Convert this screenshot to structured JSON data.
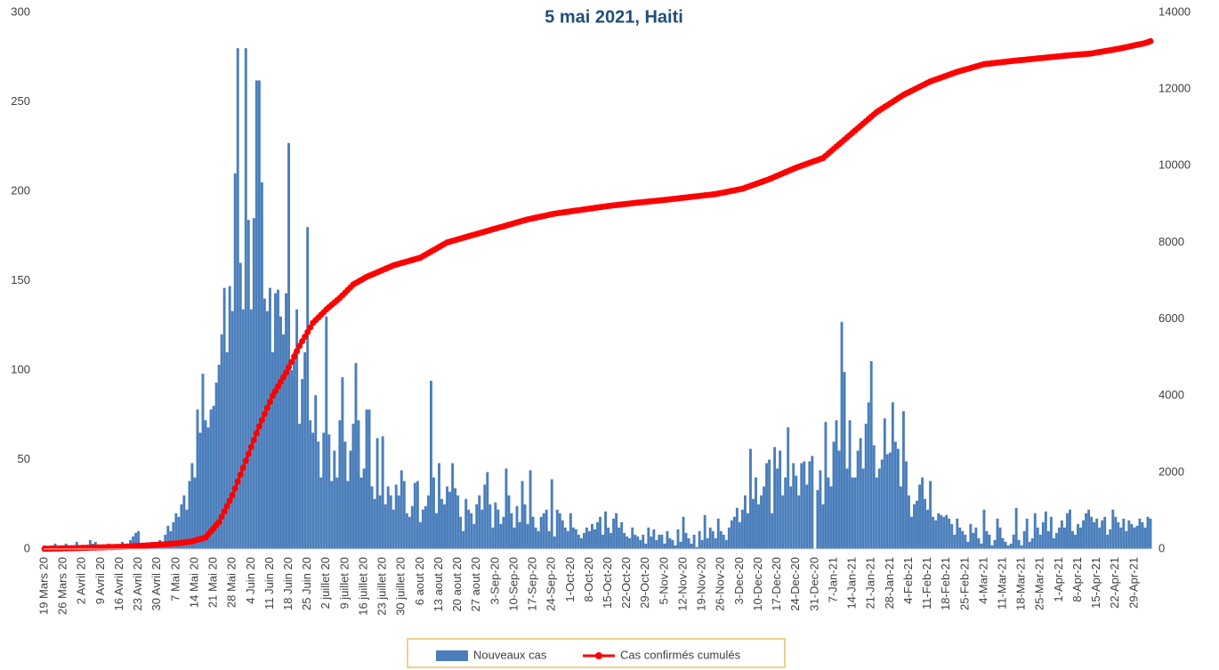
{
  "chart_data": {
    "type": "combo",
    "title": "5 mai 2021, Haiti",
    "categories": [
      "19 Mars 20",
      null,
      null,
      null,
      null,
      null,
      null,
      "26 Mars 20",
      null,
      null,
      null,
      null,
      null,
      null,
      "2 Avril 20",
      null,
      null,
      null,
      null,
      null,
      null,
      "9 Avril 20",
      null,
      null,
      null,
      null,
      null,
      null,
      "16 Avril 20",
      null,
      null,
      null,
      null,
      null,
      null,
      "23 Avril 20",
      null,
      null,
      null,
      null,
      null,
      null,
      "30 Avril 20",
      null,
      null,
      null,
      null,
      null,
      null,
      "7 Mai 20",
      null,
      null,
      null,
      null,
      null,
      null,
      "14 Mai 20",
      null,
      null,
      null,
      null,
      null,
      null,
      "21 Mai 20",
      null,
      null,
      null,
      null,
      null,
      null,
      "28 Mai 20",
      null,
      null,
      null,
      null,
      null,
      null,
      "4 Juin 20",
      null,
      null,
      null,
      null,
      null,
      null,
      "11 Juin 20",
      null,
      null,
      null,
      null,
      null,
      null,
      "18 Juin 20",
      null,
      null,
      null,
      null,
      null,
      null,
      "25 Juin 20",
      null,
      null,
      null,
      null,
      null,
      null,
      "2 juillet 20",
      null,
      null,
      null,
      null,
      null,
      null,
      "9 juillet 20",
      null,
      null,
      null,
      null,
      null,
      null,
      "16 juillet 20",
      null,
      null,
      null,
      null,
      null,
      null,
      "23 juillet 20",
      null,
      null,
      null,
      null,
      null,
      null,
      "30 juillet 20",
      null,
      null,
      null,
      null,
      null,
      null,
      "6 aout 20",
      null,
      null,
      null,
      null,
      null,
      null,
      "13 aout 20",
      null,
      null,
      null,
      null,
      null,
      null,
      "20 aout 20",
      null,
      null,
      null,
      null,
      null,
      null,
      "27 aout 20",
      null,
      null,
      null,
      null,
      null,
      null,
      "3-Sep-20",
      null,
      null,
      null,
      null,
      null,
      null,
      "10-Sep-20",
      null,
      null,
      null,
      null,
      null,
      null,
      "17-Sep-20",
      null,
      null,
      null,
      null,
      null,
      null,
      "24-Sep-20",
      null,
      null,
      null,
      null,
      null,
      null,
      "1-Oct-20",
      null,
      null,
      null,
      null,
      null,
      null,
      "8-Oct-20",
      null,
      null,
      null,
      null,
      null,
      null,
      "15-Oct-20",
      null,
      null,
      null,
      null,
      null,
      null,
      "22-Oct-20",
      null,
      null,
      null,
      null,
      null,
      null,
      "29-Oct-20",
      null,
      null,
      null,
      null,
      null,
      null,
      "5-Nov-20",
      null,
      null,
      null,
      null,
      null,
      null,
      "12-Nov-20",
      null,
      null,
      null,
      null,
      null,
      null,
      "19-Nov-20",
      null,
      null,
      null,
      null,
      null,
      null,
      "26-Nov-20",
      null,
      null,
      null,
      null,
      null,
      null,
      "3-Dec-20",
      null,
      null,
      null,
      null,
      null,
      null,
      "10-Dec-20",
      null,
      null,
      null,
      null,
      null,
      null,
      "17-Dec-20",
      null,
      null,
      null,
      null,
      null,
      null,
      "24-Dec-20",
      null,
      null,
      null,
      null,
      null,
      null,
      "31-Dec-20",
      null,
      null,
      null,
      null,
      null,
      null,
      "7-Jan-21",
      null,
      null,
      null,
      null,
      null,
      null,
      "14-Jan-21",
      null,
      null,
      null,
      null,
      null,
      null,
      "21-Jan-21",
      null,
      null,
      null,
      null,
      null,
      null,
      "28-Jan-21",
      null,
      null,
      null,
      null,
      null,
      null,
      "4-Feb-21",
      null,
      null,
      null,
      null,
      null,
      null,
      "11-Feb-21",
      null,
      null,
      null,
      null,
      null,
      null,
      "18-Feb-21",
      null,
      null,
      null,
      null,
      null,
      null,
      "25-Feb-21",
      null,
      null,
      null,
      null,
      null,
      null,
      "4-Mar-21",
      null,
      null,
      null,
      null,
      null,
      null,
      "11-Mar-21",
      null,
      null,
      null,
      null,
      null,
      null,
      "18-Mar-21",
      null,
      null,
      null,
      null,
      null,
      null,
      "25-Mar-21",
      null,
      null,
      null,
      null,
      null,
      null,
      "1-Apr-21",
      null,
      null,
      null,
      null,
      null,
      null,
      "8-Apr-21",
      null,
      null,
      null,
      null,
      null,
      null,
      "15-Apr-21",
      null,
      null,
      null,
      null,
      null,
      null,
      "22-Apr-21",
      null,
      null,
      null,
      null,
      null,
      null,
      "29-Apr-21",
      null,
      null,
      null,
      null,
      null,
      null
    ],
    "series": [
      {
        "name": "Nouveaux cas",
        "type": "bar",
        "color": "#4a7ebb",
        "values": [
          2,
          1,
          0,
          2,
          3,
          1,
          0,
          0,
          3,
          0,
          2,
          1,
          4,
          0,
          1,
          0,
          2,
          5,
          3,
          4,
          1,
          0,
          2,
          1,
          3,
          0,
          1,
          2,
          2,
          4,
          1,
          3,
          5,
          7,
          9,
          10,
          3,
          2,
          1,
          3,
          4,
          2,
          3,
          5,
          3,
          8,
          13,
          10,
          15,
          20,
          18,
          25,
          30,
          22,
          38,
          48,
          40,
          78,
          65,
          98,
          72,
          68,
          78,
          80,
          93,
          103,
          120,
          146,
          110,
          147,
          133,
          210,
          280,
          160,
          134,
          280,
          184,
          134,
          185,
          262,
          262,
          205,
          140,
          133,
          146,
          110,
          143,
          145,
          130,
          120,
          143,
          227,
          100,
          110,
          134,
          70,
          95,
          110,
          180,
          72,
          65,
          86,
          60,
          40,
          65,
          130,
          64,
          38,
          55,
          40,
          72,
          96,
          60,
          38,
          55,
          70,
          104,
          72,
          40,
          45,
          78,
          78,
          35,
          28,
          62,
          30,
          63,
          25,
          35,
          30,
          22,
          36,
          30,
          44,
          38,
          20,
          18,
          24,
          37,
          38,
          15,
          22,
          24,
          30,
          94,
          40,
          20,
          48,
          28,
          25,
          35,
          32,
          48,
          34,
          30,
          18,
          10,
          28,
          22,
          20,
          14,
          25,
          30,
          22,
          36,
          43,
          25,
          12,
          26,
          22,
          14,
          18,
          45,
          30,
          20,
          12,
          24,
          15,
          38,
          25,
          14,
          44,
          18,
          12,
          10,
          18,
          20,
          22,
          10,
          39,
          7,
          22,
          20,
          16,
          12,
          10,
          20,
          12,
          11,
          8,
          6,
          9,
          12,
          10,
          14,
          11,
          15,
          18,
          8,
          21,
          12,
          9,
          17,
          20,
          12,
          15,
          9,
          7,
          6,
          12,
          8,
          7,
          5,
          8,
          3,
          12,
          7,
          11,
          5,
          8,
          8,
          3,
          10,
          6,
          5,
          2,
          11,
          4,
          18,
          9,
          6,
          3,
          8,
          1,
          10,
          5,
          19,
          6,
          12,
          10,
          6,
          17,
          10,
          8,
          5,
          12,
          16,
          18,
          23,
          15,
          22,
          30,
          20,
          56,
          28,
          40,
          25,
          30,
          35,
          48,
          50,
          20,
          57,
          45,
          55,
          30,
          40,
          68,
          35,
          48,
          41,
          30,
          48,
          49,
          36,
          49,
          52,
          0,
          33,
          44,
          25,
          71,
          40,
          35,
          60,
          72,
          55,
          127,
          99,
          45,
          72,
          40,
          40,
          55,
          62,
          45,
          70,
          82,
          105,
          58,
          40,
          45,
          50,
          73,
          53,
          54,
          82,
          60,
          56,
          35,
          77,
          49,
          30,
          18,
          25,
          27,
          36,
          40,
          28,
          22,
          38,
          18,
          16,
          20,
          19,
          18,
          19,
          17,
          14,
          8,
          17,
          12,
          10,
          8,
          4,
          14,
          9,
          12,
          6,
          3,
          22,
          10,
          8,
          2,
          5,
          17,
          12,
          6,
          4,
          2,
          3,
          8,
          23,
          5,
          2,
          10,
          17,
          4,
          6,
          20,
          12,
          8,
          15,
          21,
          10,
          18,
          6,
          9,
          12,
          16,
          12,
          20,
          22,
          10,
          8,
          14,
          12,
          16,
          20,
          22,
          18,
          15,
          17,
          12,
          16,
          18,
          8,
          11,
          22,
          18,
          15,
          12,
          17,
          10,
          16,
          14,
          12,
          13,
          17,
          15,
          12,
          18,
          17
        ]
      },
      {
        "name": "Cas confirmés cumulés",
        "type": "line",
        "axis": "y2",
        "color": "#ff0000",
        "values": [
          6,
          7,
          9,
          10,
          12,
          13,
          15,
          16,
          18,
          19,
          20,
          22,
          24,
          26,
          28,
          30,
          32,
          34,
          36,
          38,
          40,
          42,
          44,
          46,
          48,
          50,
          52,
          54,
          56,
          58,
          60,
          64,
          68,
          72,
          76,
          80,
          84,
          88,
          92,
          96,
          100,
          105,
          110,
          115,
          120,
          125,
          130,
          135,
          140,
          145,
          150,
          160,
          170,
          180,
          190,
          200,
          220,
          240,
          260,
          280,
          300,
          380,
          460,
          540,
          620,
          700,
          840,
          980,
          1120,
          1260,
          1400,
          1580,
          1760,
          1940,
          2120,
          2300,
          2480,
          2660,
          2840,
          3020,
          3200,
          3360,
          3520,
          3680,
          3840,
          4000,
          4120,
          4240,
          4360,
          4480,
          4600,
          4740,
          4880,
          5020,
          5160,
          5300,
          5420,
          5540,
          5660,
          5780,
          5900,
          5970,
          6040,
          6110,
          6180,
          6250,
          6310,
          6370,
          6430,
          6490,
          6550,
          6620,
          6690,
          6760,
          6830,
          6900,
          6940,
          6980,
          7020,
          7060,
          7100,
          7130,
          7160,
          7190,
          7220,
          7250,
          7280,
          7310,
          7340,
          7370,
          7400,
          7420,
          7440,
          7460,
          7480,
          7500,
          7520,
          7540,
          7560,
          7580,
          7600,
          7640,
          7680,
          7720,
          7760,
          7800,
          7840,
          7880,
          7920,
          7960,
          8000,
          8020,
          8040,
          8060,
          8080,
          8100,
          8120,
          8140,
          8160,
          8180,
          8200,
          8220,
          8240,
          8260,
          8280,
          8300,
          8320,
          8340,
          8360,
          8380,
          8400,
          8420,
          8440,
          8460,
          8480,
          8500,
          8520,
          8540,
          8560,
          8580,
          8600,
          8615,
          8630,
          8645,
          8660,
          8675,
          8690,
          8705,
          8720,
          8735,
          8750,
          8760,
          8770,
          8780,
          8790,
          8800,
          8810,
          8820,
          8830,
          8840,
          8850,
          8860,
          8870,
          8880,
          8890,
          8900,
          8910,
          8920,
          8930,
          8940,
          8950,
          8958,
          8966,
          8974,
          8982,
          8990,
          8998,
          9006,
          9014,
          9022,
          9030,
          9037,
          9044,
          9051,
          9058,
          9065,
          9072,
          9079,
          9086,
          9093,
          9100,
          9108,
          9116,
          9124,
          9132,
          9140,
          9148,
          9156,
          9164,
          9172,
          9180,
          9188,
          9196,
          9204,
          9212,
          9220,
          9228,
          9236,
          9244,
          9252,
          9260,
          9274,
          9288,
          9302,
          9316,
          9330,
          9344,
          9358,
          9372,
          9386,
          9400,
          9425,
          9450,
          9475,
          9500,
          9525,
          9550,
          9575,
          9600,
          9625,
          9650,
          9680,
          9710,
          9740,
          9770,
          9800,
          9830,
          9860,
          9890,
          9920,
          9950,
          9975,
          10000,
          10025,
          10050,
          10075,
          10100,
          10125,
          10150,
          10175,
          10200,
          10260,
          10320,
          10380,
          10440,
          10500,
          10560,
          10620,
          10680,
          10740,
          10800,
          10860,
          10920,
          10980,
          11040,
          11100,
          11160,
          11220,
          11280,
          11340,
          11400,
          11445,
          11490,
          11535,
          11580,
          11625,
          11670,
          11715,
          11760,
          11805,
          11850,
          11885,
          11920,
          11955,
          11990,
          12025,
          12060,
          12095,
          12130,
          12165,
          12200,
          12225,
          12250,
          12275,
          12300,
          12325,
          12350,
          12375,
          12400,
          12425,
          12450,
          12470,
          12490,
          12510,
          12530,
          12550,
          12570,
          12590,
          12610,
          12630,
          12650,
          12658,
          12666,
          12674,
          12682,
          12690,
          12698,
          12706,
          12714,
          12722,
          12730,
          12737,
          12744,
          12751,
          12758,
          12765,
          12772,
          12779,
          12786,
          12793,
          12800,
          12807,
          12814,
          12821,
          12828,
          12835,
          12842,
          12849,
          12856,
          12863,
          12870,
          12876,
          12882,
          12888,
          12894,
          12900,
          12906,
          12912,
          12918,
          12924,
          12930,
          12942,
          12954,
          12966,
          12978,
          12990,
          13002,
          13014,
          13026,
          13038,
          13050,
          13065,
          13080,
          13095,
          13110,
          13125,
          13140,
          13155,
          13170,
          13185,
          13200,
          13225,
          13250
        ]
      }
    ],
    "ylim": [
      0,
      300
    ],
    "yticks": [
      0,
      50,
      100,
      150,
      200,
      250,
      300
    ],
    "y2lim": [
      0,
      14000
    ],
    "y2ticks": [
      0,
      2000,
      4000,
      6000,
      8000,
      10000,
      12000,
      14000
    ],
    "grid": false,
    "legend": "bottom"
  }
}
